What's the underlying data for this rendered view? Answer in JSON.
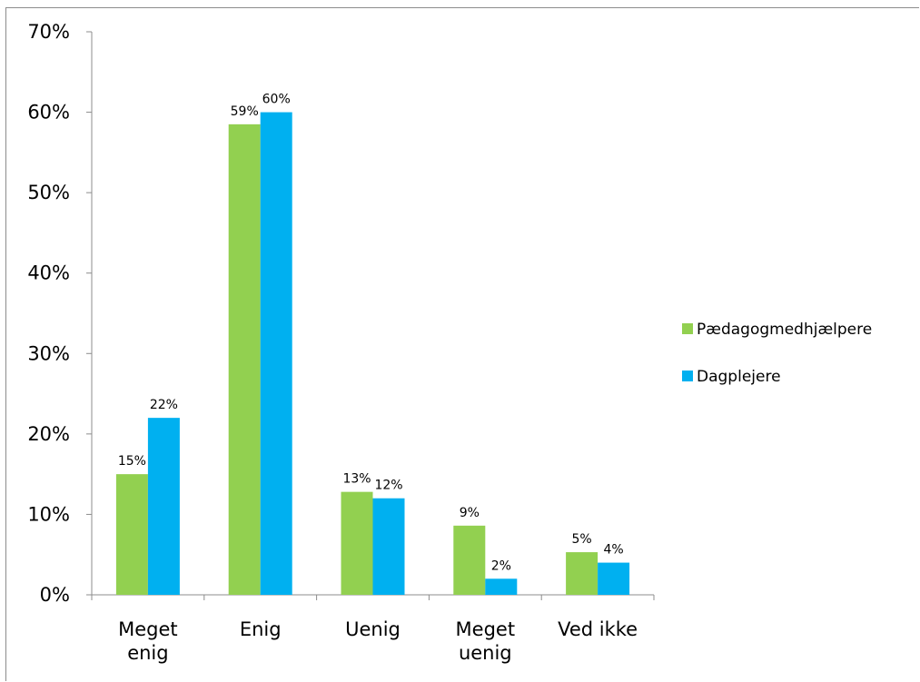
{
  "chart_data": {
    "type": "bar",
    "categories": [
      [
        "Meget",
        "enig"
      ],
      [
        "Enig"
      ],
      [
        "Uenig"
      ],
      [
        "Meget",
        "uenig"
      ],
      [
        "Ved ikke"
      ]
    ],
    "series": [
      {
        "name": "Pædagogmedhjælpere",
        "color": "#92d050",
        "values": [
          15,
          58.5,
          12.8,
          8.6,
          5.3
        ],
        "labels": [
          "15%",
          "59%",
          "13%",
          "9%",
          "5%"
        ]
      },
      {
        "name": "Dagplejere",
        "color": "#00b0f0",
        "values": [
          22,
          60,
          12,
          2,
          4
        ],
        "labels": [
          "22%",
          "60%",
          "12%",
          "2%",
          "4%"
        ]
      }
    ],
    "ylim": [
      0,
      70
    ],
    "yticks": [
      0,
      10,
      20,
      30,
      40,
      50,
      60,
      70
    ],
    "ytick_labels": [
      "0%",
      "10%",
      "20%",
      "30%",
      "40%",
      "50%",
      "60%",
      "70%"
    ],
    "title": "",
    "xlabel": "",
    "ylabel": "",
    "legend_position": "right",
    "grid": false,
    "axis_color": "#8c8c8c"
  }
}
